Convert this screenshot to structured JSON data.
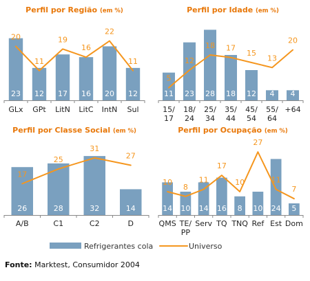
{
  "source": {
    "label": "Fonte:",
    "text": " Marktest, Consumidor 2004"
  },
  "legend": {
    "bars": "Refrigerantes cola",
    "line": "Universo"
  },
  "colors": {
    "bar": "#7aa0bf",
    "line": "#f5961e",
    "title": "#e8780a"
  },
  "chart_data": [
    {
      "type": "bar",
      "title": "Perfil por Região",
      "title_suffix": "(em %)",
      "categories": [
        [
          "GLx"
        ],
        [
          "GPt"
        ],
        [
          "LitN"
        ],
        [
          "LitC"
        ],
        [
          "IntN"
        ],
        [
          "Sul"
        ]
      ],
      "series": [
        {
          "name": "Refrigerantes cola",
          "kind": "bar",
          "values": [
            23,
            12,
            17,
            16,
            20,
            12
          ]
        },
        {
          "name": "Universo",
          "kind": "line",
          "values": [
            20,
            11,
            19,
            16,
            22,
            11
          ]
        }
      ],
      "ylim": [
        0,
        28
      ]
    },
    {
      "type": "bar",
      "title": "Perfil por Idade",
      "title_suffix": "(em %)",
      "categories": [
        [
          "15/",
          "17"
        ],
        [
          "18/",
          "24"
        ],
        [
          "25/",
          "34"
        ],
        [
          "35/",
          "44"
        ],
        [
          "45/",
          "54"
        ],
        [
          "55/",
          "64"
        ],
        [
          "+64"
        ]
      ],
      "series": [
        {
          "name": "Refrigerantes cola",
          "kind": "bar",
          "values": [
            11,
            23,
            28,
            18,
            12,
            4,
            4
          ]
        },
        {
          "name": "Universo",
          "kind": "line",
          "values": [
            5,
            12,
            18,
            17,
            15,
            13,
            20
          ]
        }
      ],
      "ylim": [
        0,
        30
      ]
    },
    {
      "type": "bar",
      "title": "Perfil por Classe Social",
      "title_suffix": "(em %)",
      "categories": [
        [
          "A/B"
        ],
        [
          "C1"
        ],
        [
          "C2"
        ],
        [
          "D"
        ]
      ],
      "series": [
        {
          "name": "Refrigerantes cola",
          "kind": "bar",
          "values": [
            26,
            28,
            32,
            14
          ]
        },
        {
          "name": "Universo",
          "kind": "line",
          "values": [
            17,
            25,
            31,
            27
          ]
        }
      ],
      "ylim": [
        0,
        38
      ]
    },
    {
      "type": "bar",
      "title": "Perfil por Ocupação",
      "title_suffix": "(em %)",
      "categories": [
        [
          "QMS"
        ],
        [
          "TE/",
          "PP"
        ],
        [
          "Serv"
        ],
        [
          "TQ"
        ],
        [
          "TNQ"
        ],
        [
          "Ref"
        ],
        [
          "Est"
        ],
        [
          "Dom"
        ]
      ],
      "series": [
        {
          "name": "Refrigerantes cola",
          "kind": "bar",
          "values": [
            14,
            10,
            14,
            16,
            8,
            10,
            24,
            5
          ]
        },
        {
          "name": "Universo",
          "kind": "line",
          "values": [
            10,
            8,
            11,
            17,
            10,
            27,
            11,
            7
          ]
        }
      ],
      "ylim": [
        0,
        30
      ]
    }
  ]
}
